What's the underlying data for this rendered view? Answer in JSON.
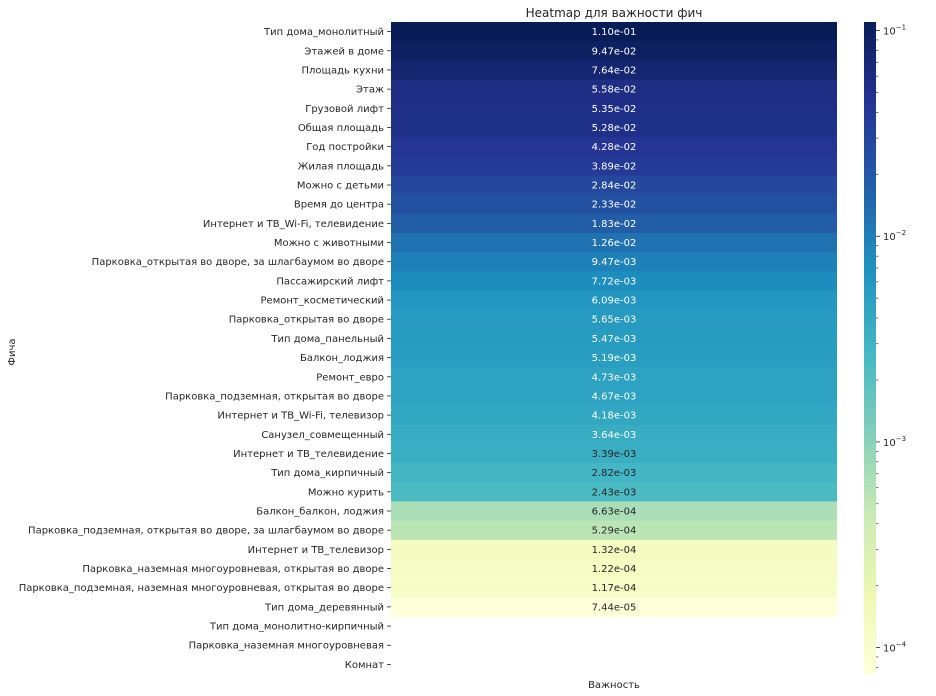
{
  "chart_data": {
    "type": "heatmap",
    "title": "Heatmap для важности фич",
    "xlabel": "Важность",
    "ylabel": "Фича",
    "color_scale": "log",
    "colormap": "YlGnBu",
    "value_range": [
      7.44e-05,
      0.11
    ],
    "colorbar_ticks": [
      {
        "value": 0.1,
        "label_base": "10",
        "label_exp": "−1"
      },
      {
        "value": 0.01,
        "label_base": "10",
        "label_exp": "−2"
      },
      {
        "value": 0.001,
        "label_base": "10",
        "label_exp": "−3"
      },
      {
        "value": 0.0001,
        "label_base": "10",
        "label_exp": "−4"
      }
    ],
    "rows": [
      {
        "feature": "Тип дома_монолитный",
        "value": 0.11,
        "label": "1.10e-01"
      },
      {
        "feature": "Этажей в доме",
        "value": 0.0947,
        "label": "9.47e-02"
      },
      {
        "feature": "Площадь кухни",
        "value": 0.0764,
        "label": "7.64e-02"
      },
      {
        "feature": "Этаж",
        "value": 0.0558,
        "label": "5.58e-02"
      },
      {
        "feature": "Грузовой лифт",
        "value": 0.0535,
        "label": "5.35e-02"
      },
      {
        "feature": "Общая площадь",
        "value": 0.0528,
        "label": "5.28e-02"
      },
      {
        "feature": "Год постройки",
        "value": 0.0428,
        "label": "4.28e-02"
      },
      {
        "feature": "Жилая площадь",
        "value": 0.0389,
        "label": "3.89e-02"
      },
      {
        "feature": "Можно с детьми",
        "value": 0.0284,
        "label": "2.84e-02"
      },
      {
        "feature": "Время до центра",
        "value": 0.0233,
        "label": "2.33e-02"
      },
      {
        "feature": "Интернет и ТВ_Wi-Fi, телевидение",
        "value": 0.0183,
        "label": "1.83e-02"
      },
      {
        "feature": "Можно с животными",
        "value": 0.0126,
        "label": "1.26e-02"
      },
      {
        "feature": "Парковка_открытая во дворе, за шлагбаумом во дворе",
        "value": 0.00947,
        "label": "9.47e-03"
      },
      {
        "feature": "Пассажирский лифт",
        "value": 0.00772,
        "label": "7.72e-03"
      },
      {
        "feature": "Ремонт_косметический",
        "value": 0.00609,
        "label": "6.09e-03"
      },
      {
        "feature": "Парковка_открытая во дворе",
        "value": 0.00565,
        "label": "5.65e-03"
      },
      {
        "feature": "Тип дома_панельный",
        "value": 0.00547,
        "label": "5.47e-03"
      },
      {
        "feature": "Балкон_лоджия",
        "value": 0.00519,
        "label": "5.19e-03"
      },
      {
        "feature": "Ремонт_евро",
        "value": 0.00473,
        "label": "4.73e-03"
      },
      {
        "feature": "Парковка_подземная, открытая во дворе",
        "value": 0.00467,
        "label": "4.67e-03"
      },
      {
        "feature": "Интернет и ТВ_Wi-Fi, телевизор",
        "value": 0.00418,
        "label": "4.18e-03"
      },
      {
        "feature": "Санузел_совмещенный",
        "value": 0.00364,
        "label": "3.64e-03"
      },
      {
        "feature": "Интернет и ТВ_телевидение",
        "value": 0.00339,
        "label": "3.39e-03"
      },
      {
        "feature": "Тип дома_кирпичный",
        "value": 0.00282,
        "label": "2.82e-03"
      },
      {
        "feature": "Можно курить",
        "value": 0.00243,
        "label": "2.43e-03"
      },
      {
        "feature": "Балкон_балкон, лоджия",
        "value": 0.000663,
        "label": "6.63e-04"
      },
      {
        "feature": "Парковка_подземная, открытая во дворе, за шлагбаумом во дворе",
        "value": 0.000529,
        "label": "5.29e-04"
      },
      {
        "feature": "Интернет и ТВ_телевизор",
        "value": 0.000132,
        "label": "1.32e-04"
      },
      {
        "feature": "Парковка_наземная многоуровневая, открытая во дворе",
        "value": 0.000122,
        "label": "1.22e-04"
      },
      {
        "feature": "Парковка_подземная, наземная многоуровневая, открытая во дворе",
        "value": 0.000117,
        "label": "1.17e-04"
      },
      {
        "feature": "Тип дома_деревянный",
        "value": 7.44e-05,
        "label": "7.44e-05"
      },
      {
        "feature": "Тип дома_монолитно-кирпичный",
        "value": null,
        "label": ""
      },
      {
        "feature": "Парковка_наземная многоуровневая",
        "value": null,
        "label": ""
      },
      {
        "feature": "Комнат",
        "value": null,
        "label": ""
      }
    ]
  }
}
